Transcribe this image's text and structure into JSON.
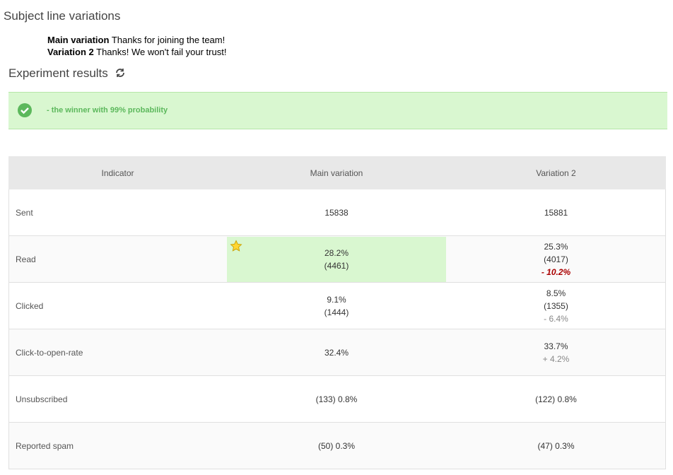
{
  "header": {
    "title": "Subject line variations"
  },
  "variations": [
    {
      "label": "Main variation",
      "text": "Thanks for joining the team!"
    },
    {
      "label": "Variation 2",
      "text": "Thanks! We won't fail your trust!"
    }
  ],
  "results": {
    "title": "Experiment results",
    "banner": "- the winner with 99% probability"
  },
  "table": {
    "headers": [
      "Indicator",
      "Main variation",
      "Variation 2"
    ],
    "rows": [
      {
        "indicator": "Sent",
        "main": [
          "15838"
        ],
        "variant": [
          "15881"
        ]
      },
      {
        "indicator": "Read",
        "main": [
          "28.2%",
          "(4461)"
        ],
        "variant": [
          "25.3%",
          "(4017)"
        ],
        "change": "- 10.2%",
        "significant": true,
        "winner": "main"
      },
      {
        "indicator": "Clicked",
        "main": [
          "9.1%",
          "(1444)"
        ],
        "variant": [
          "8.5%",
          "(1355)"
        ],
        "change": "- 6.4%"
      },
      {
        "indicator": "Click-to-open-rate",
        "main": [
          "32.4%"
        ],
        "variant": [
          "33.7%"
        ],
        "change": "+ 4.2%"
      },
      {
        "indicator": "Unsubscribed",
        "main": [
          "(133) 0.8%"
        ],
        "variant": [
          "(122) 0.8%"
        ]
      },
      {
        "indicator": "Reported spam",
        "main": [
          "(50) 0.3%"
        ],
        "variant": [
          "(47) 0.3%"
        ]
      }
    ]
  }
}
